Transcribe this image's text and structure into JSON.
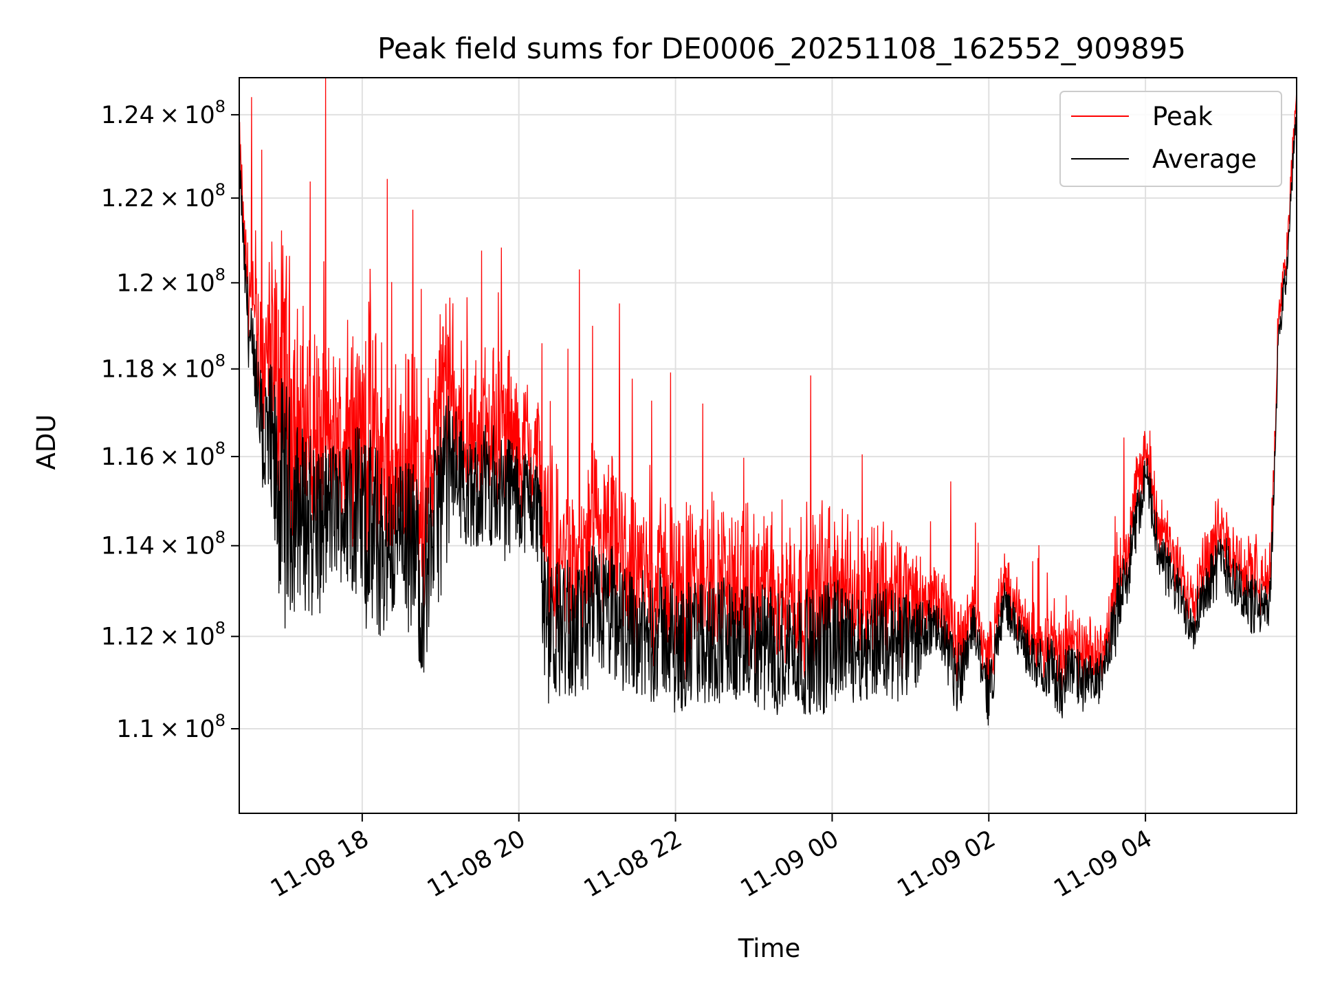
{
  "chart_data": {
    "type": "line",
    "title": "Peak field sums for DE0006_20251108_162552_909895",
    "xlabel": "Time",
    "ylabel": "ADU",
    "y_scale": "log",
    "grid": true,
    "legend_position": "upper-right",
    "xlim": [
      16.43,
      29.93
    ],
    "ylim": [
      108200000,
      124900000
    ],
    "x_ticks": [
      {
        "value": 18,
        "label": "11-08 18"
      },
      {
        "value": 20,
        "label": "11-08 20"
      },
      {
        "value": 22,
        "label": "11-08 22"
      },
      {
        "value": 24,
        "label": "11-09 00"
      },
      {
        "value": 26,
        "label": "11-09 02"
      },
      {
        "value": 28,
        "label": "11-09 04"
      }
    ],
    "y_ticks": [
      {
        "value": 110000000,
        "mantissa": "1.1",
        "exponent": "8"
      },
      {
        "value": 112000000,
        "mantissa": "1.12",
        "exponent": "8"
      },
      {
        "value": 114000000,
        "mantissa": "1.14",
        "exponent": "8"
      },
      {
        "value": 116000000,
        "mantissa": "1.16",
        "exponent": "8"
      },
      {
        "value": 118000000,
        "mantissa": "1.18",
        "exponent": "8"
      },
      {
        "value": 120000000,
        "mantissa": "1.2",
        "exponent": "8"
      },
      {
        "value": 122000000,
        "mantissa": "1.22",
        "exponent": "8"
      },
      {
        "value": 124000000,
        "mantissa": "1.24",
        "exponent": "8"
      }
    ],
    "times_symbol": "×",
    "series": [
      {
        "name": "Peak",
        "color": "#ff0000",
        "x": [
          16.43,
          16.5,
          16.6,
          16.7,
          16.8,
          16.9,
          17.0,
          17.1,
          17.2,
          17.3,
          17.4,
          17.5,
          17.6,
          17.7,
          17.8,
          17.9,
          18.0,
          18.1,
          18.2,
          18.3,
          18.4,
          18.5,
          18.6,
          18.7,
          18.8,
          18.9,
          19.0,
          19.1,
          19.2,
          19.3,
          19.4,
          19.5,
          19.6,
          19.7,
          19.8,
          19.9,
          20.0,
          20.1,
          20.2,
          20.28,
          20.3,
          20.4,
          20.5,
          20.6,
          20.7,
          20.8,
          20.9,
          21.0,
          21.1,
          21.2,
          21.3,
          21.4,
          21.5,
          21.6,
          21.7,
          21.8,
          21.9,
          22.0,
          22.2,
          22.4,
          22.6,
          22.8,
          23.0,
          23.2,
          23.4,
          23.6,
          23.8,
          24.0,
          24.2,
          24.4,
          24.6,
          24.8,
          25.0,
          25.2,
          25.4,
          25.6,
          25.8,
          26.0,
          26.2,
          26.4,
          26.6,
          26.8,
          26.9,
          27.0,
          27.2,
          27.4,
          27.5,
          27.6,
          27.8,
          28.0,
          28.2,
          28.4,
          28.6,
          28.8,
          29.0,
          29.2,
          29.4,
          29.5,
          29.6,
          29.7,
          29.8,
          29.93
        ],
        "values": [
          123600000,
          121000000,
          119600000,
          118400000,
          119000000,
          118300000,
          118600000,
          117900000,
          117300000,
          117300000,
          117200000,
          116800000,
          116900000,
          116800000,
          116800000,
          117600000,
          117000000,
          117400000,
          116800000,
          116500000,
          116300000,
          116200000,
          116600000,
          116400000,
          115800000,
          116300000,
          117800000,
          117900000,
          117400000,
          117100000,
          116500000,
          117000000,
          117200000,
          117100000,
          117000000,
          117100000,
          116400000,
          116700000,
          116400000,
          116500000,
          114800000,
          114000000,
          114200000,
          114200000,
          113800000,
          114000000,
          114400000,
          114600000,
          114300000,
          114500000,
          114300000,
          113800000,
          114000000,
          113800000,
          113600000,
          113900000,
          113700000,
          113500000,
          113600000,
          113700000,
          113800000,
          113400000,
          113500000,
          113500000,
          113500000,
          113400000,
          113400000,
          113700000,
          113400000,
          113300000,
          113600000,
          113400000,
          113200000,
          113000000,
          112800000,
          112100000,
          112900000,
          111600000,
          113400000,
          112500000,
          112100000,
          112200000,
          111900000,
          112100000,
          111800000,
          111700000,
          112100000,
          113200000,
          114600000,
          116400000,
          114500000,
          113700000,
          113100000,
          114000000,
          114600000,
          113800000,
          113500000,
          113300000,
          113600000,
          119500000,
          120700000,
          124900000
        ]
      },
      {
        "name": "Average",
        "color": "#000000",
        "x": [
          16.43,
          16.5,
          16.6,
          16.7,
          16.8,
          16.9,
          17.0,
          17.1,
          17.2,
          17.3,
          17.4,
          17.5,
          17.6,
          17.7,
          17.8,
          17.9,
          18.0,
          18.1,
          18.2,
          18.3,
          18.4,
          18.5,
          18.6,
          18.7,
          18.8,
          18.9,
          19.0,
          19.1,
          19.2,
          19.3,
          19.4,
          19.5,
          19.6,
          19.7,
          19.8,
          19.9,
          20.0,
          20.1,
          20.2,
          20.28,
          20.3,
          20.4,
          20.5,
          20.6,
          20.7,
          20.8,
          20.9,
          21.0,
          21.1,
          21.2,
          21.3,
          21.4,
          21.5,
          21.6,
          21.7,
          21.8,
          21.9,
          22.0,
          22.2,
          22.4,
          22.6,
          22.8,
          23.0,
          23.2,
          23.4,
          23.6,
          23.8,
          24.0,
          24.2,
          24.4,
          24.6,
          24.8,
          25.0,
          25.2,
          25.4,
          25.6,
          25.8,
          26.0,
          26.2,
          26.4,
          26.6,
          26.8,
          26.9,
          27.0,
          27.2,
          27.4,
          27.5,
          27.6,
          27.8,
          28.0,
          28.2,
          28.4,
          28.6,
          28.8,
          29.0,
          29.2,
          29.4,
          29.5,
          29.6,
          29.7,
          29.8,
          29.93
        ],
        "values": [
          123000000,
          120200000,
          117800000,
          116700000,
          116100000,
          115400000,
          115000000,
          114800000,
          114800000,
          114600000,
          114500000,
          114400000,
          114800000,
          114800000,
          114700000,
          115000000,
          114500000,
          114200000,
          114000000,
          113900000,
          114100000,
          114600000,
          114000000,
          113600000,
          113200000,
          114300000,
          115000000,
          115600000,
          115700000,
          115400000,
          114900000,
          115300000,
          115500000,
          115200000,
          115000000,
          115300000,
          115000000,
          115100000,
          114900000,
          114800000,
          112700000,
          112000000,
          112200000,
          112200000,
          112000000,
          112100000,
          112300000,
          112600000,
          112500000,
          112400000,
          112300000,
          112200000,
          112200000,
          111900000,
          111900000,
          112100000,
          112000000,
          111700000,
          111800000,
          111900000,
          112000000,
          111700000,
          111800000,
          111700000,
          111700000,
          111700000,
          111600000,
          111900000,
          111800000,
          111800000,
          112000000,
          111800000,
          111700000,
          112200000,
          112000000,
          111000000,
          112300000,
          110700000,
          112800000,
          111900000,
          111400000,
          111300000,
          110800000,
          111300000,
          111000000,
          111000000,
          111600000,
          112200000,
          113700000,
          115600000,
          113700000,
          113000000,
          112300000,
          113200000,
          113700000,
          113000000,
          112600000,
          112500000,
          112900000,
          118900000,
          120200000,
          124400000
        ]
      }
    ],
    "legend": [
      {
        "label": "Peak",
        "color": "#ff0000"
      },
      {
        "label": "Average",
        "color": "#000000"
      }
    ]
  }
}
